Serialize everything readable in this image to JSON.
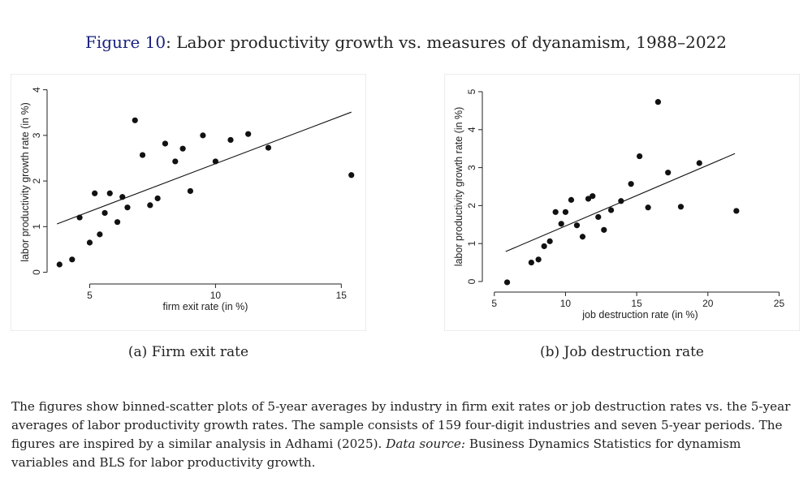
{
  "figure": {
    "number": "Figure 10",
    "title_rest": ": Labor productivity growth vs. measures of dyanamism, 1988–2022"
  },
  "chart_data": [
    {
      "id": "a",
      "type": "scatter",
      "caption": "(a) Firm exit rate",
      "xlabel": "firm exit rate (in %)",
      "ylabel": "labor productivity growth rate (in %)",
      "xlim": [
        3.5,
        15.7
      ],
      "ylim": [
        -0.15,
        4.1
      ],
      "xticks": [
        5,
        10,
        15
      ],
      "yticks": [
        0,
        1,
        2,
        3,
        4
      ],
      "points": [
        [
          3.8,
          0.17
        ],
        [
          4.3,
          0.28
        ],
        [
          4.6,
          1.2
        ],
        [
          5.0,
          0.65
        ],
        [
          5.2,
          1.73
        ],
        [
          5.4,
          0.83
        ],
        [
          5.6,
          1.3
        ],
        [
          5.8,
          1.73
        ],
        [
          6.1,
          1.1
        ],
        [
          6.3,
          1.65
        ],
        [
          6.5,
          1.42
        ],
        [
          6.8,
          3.33
        ],
        [
          7.1,
          2.57
        ],
        [
          7.4,
          1.47
        ],
        [
          7.7,
          1.62
        ],
        [
          8.0,
          2.82
        ],
        [
          8.4,
          2.43
        ],
        [
          8.7,
          2.71
        ],
        [
          9.0,
          1.78
        ],
        [
          9.5,
          3.0
        ],
        [
          10.0,
          2.43
        ],
        [
          10.6,
          2.9
        ],
        [
          11.3,
          3.03
        ],
        [
          12.1,
          2.73
        ],
        [
          15.4,
          2.13
        ]
      ],
      "fit": {
        "x1": 3.7,
        "y1": 1.06,
        "x2": 15.4,
        "y2": 3.51
      }
    },
    {
      "id": "b",
      "type": "scatter",
      "caption": "(b) Job destruction rate",
      "xlabel": "job destruction rate (in %)",
      "ylabel": "labor productivity growth rate (in %)",
      "xlim": [
        4.5,
        26.0
      ],
      "ylim": [
        -0.15,
        5.15
      ],
      "xticks": [
        5,
        10,
        15,
        20,
        25
      ],
      "yticks": [
        0,
        1,
        2,
        3,
        4,
        5
      ],
      "points": [
        [
          5.9,
          -0.02
        ],
        [
          7.6,
          0.5
        ],
        [
          8.1,
          0.58
        ],
        [
          8.5,
          0.93
        ],
        [
          8.9,
          1.06
        ],
        [
          9.3,
          1.83
        ],
        [
          9.7,
          1.52
        ],
        [
          10.0,
          1.83
        ],
        [
          10.4,
          2.15
        ],
        [
          10.8,
          1.48
        ],
        [
          11.2,
          1.18
        ],
        [
          11.6,
          2.18
        ],
        [
          11.9,
          2.25
        ],
        [
          12.3,
          1.7
        ],
        [
          12.7,
          1.36
        ],
        [
          13.2,
          1.88
        ],
        [
          13.9,
          2.12
        ],
        [
          14.6,
          2.57
        ],
        [
          15.2,
          3.3
        ],
        [
          15.8,
          1.95
        ],
        [
          16.5,
          4.73
        ],
        [
          17.2,
          2.87
        ],
        [
          18.1,
          1.97
        ],
        [
          19.4,
          3.12
        ],
        [
          22.0,
          1.86
        ]
      ],
      "fit": {
        "x1": 5.8,
        "y1": 0.79,
        "x2": 21.9,
        "y2": 3.37
      }
    }
  ],
  "notes": {
    "text_1": "The figures show binned-scatter plots of 5-year averages by industry in firm exit rates or job destruction rates vs. the 5-year averages of labor productivity growth rates. The sample consists of 159 four-digit industries and seven 5-year periods. The figures are inspired by a similar analysis in Adhami (2025). ",
    "source_label": "Data source:",
    "text_2": " Business Dynamics Statistics for dynamism variables and BLS for labor productivity growth."
  }
}
